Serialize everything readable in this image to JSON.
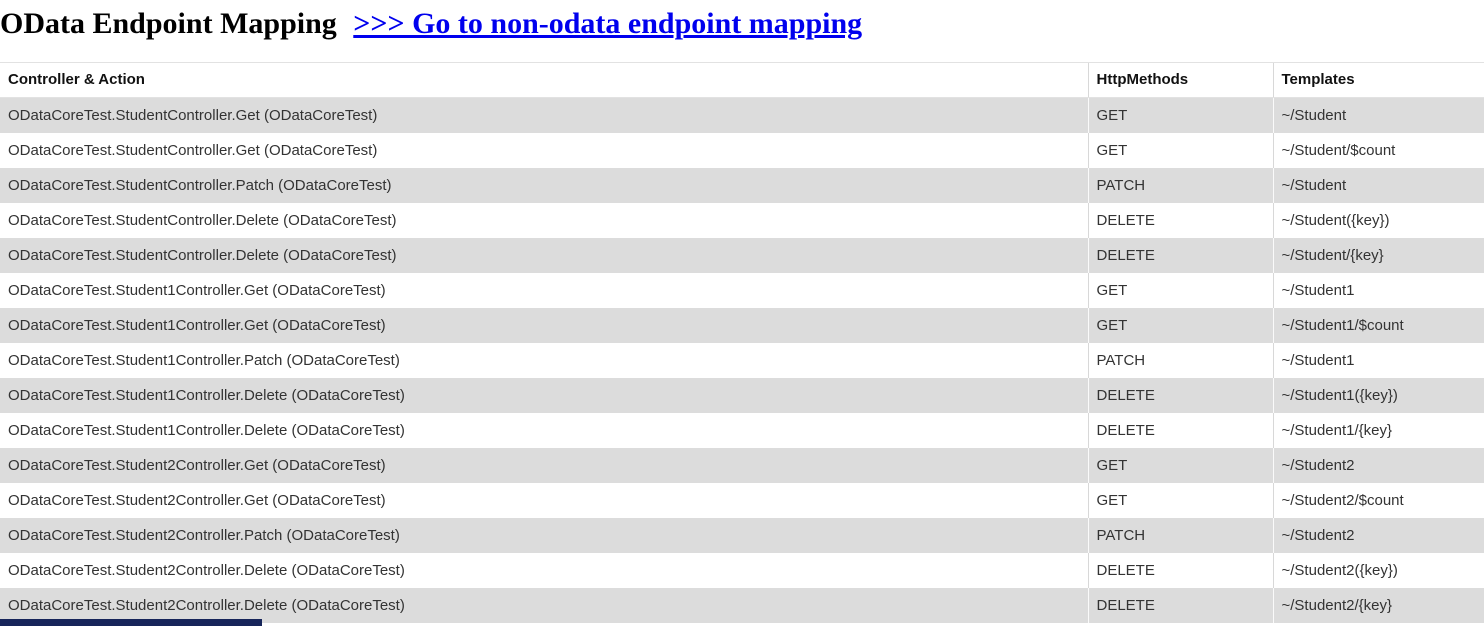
{
  "header": {
    "title": "OData Endpoint Mapping",
    "link_label": ">>> Go to non-odata endpoint mapping"
  },
  "table": {
    "columns": [
      "Controller & Action",
      "HttpMethods",
      "Templates"
    ],
    "rows": [
      {
        "controller_action": "ODataCoreTest.StudentController.Get (ODataCoreTest)",
        "http_method": "GET",
        "template": "~/Student"
      },
      {
        "controller_action": "ODataCoreTest.StudentController.Get (ODataCoreTest)",
        "http_method": "GET",
        "template": "~/Student/$count"
      },
      {
        "controller_action": "ODataCoreTest.StudentController.Patch (ODataCoreTest)",
        "http_method": "PATCH",
        "template": "~/Student"
      },
      {
        "controller_action": "ODataCoreTest.StudentController.Delete (ODataCoreTest)",
        "http_method": "DELETE",
        "template": "~/Student({key})"
      },
      {
        "controller_action": "ODataCoreTest.StudentController.Delete (ODataCoreTest)",
        "http_method": "DELETE",
        "template": "~/Student/{key}"
      },
      {
        "controller_action": "ODataCoreTest.Student1Controller.Get (ODataCoreTest)",
        "http_method": "GET",
        "template": "~/Student1"
      },
      {
        "controller_action": "ODataCoreTest.Student1Controller.Get (ODataCoreTest)",
        "http_method": "GET",
        "template": "~/Student1/$count"
      },
      {
        "controller_action": "ODataCoreTest.Student1Controller.Patch (ODataCoreTest)",
        "http_method": "PATCH",
        "template": "~/Student1"
      },
      {
        "controller_action": "ODataCoreTest.Student1Controller.Delete (ODataCoreTest)",
        "http_method": "DELETE",
        "template": "~/Student1({key})"
      },
      {
        "controller_action": "ODataCoreTest.Student1Controller.Delete (ODataCoreTest)",
        "http_method": "DELETE",
        "template": "~/Student1/{key}"
      },
      {
        "controller_action": "ODataCoreTest.Student2Controller.Get (ODataCoreTest)",
        "http_method": "GET",
        "template": "~/Student2"
      },
      {
        "controller_action": "ODataCoreTest.Student2Controller.Get (ODataCoreTest)",
        "http_method": "GET",
        "template": "~/Student2/$count"
      },
      {
        "controller_action": "ODataCoreTest.Student2Controller.Patch (ODataCoreTest)",
        "http_method": "PATCH",
        "template": "~/Student2"
      },
      {
        "controller_action": "ODataCoreTest.Student2Controller.Delete (ODataCoreTest)",
        "http_method": "DELETE",
        "template": "~/Student2({key})"
      },
      {
        "controller_action": "ODataCoreTest.Student2Controller.Delete (ODataCoreTest)",
        "http_method": "DELETE",
        "template": "~/Student2/{key}"
      }
    ]
  },
  "colors": {
    "row_stripe": "#dcdcdc",
    "link": "#0000ee",
    "status_bar": "#17255a"
  }
}
